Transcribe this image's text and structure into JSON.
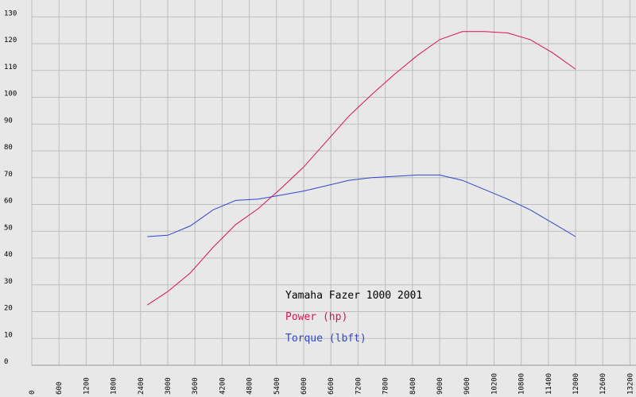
{
  "chart_data": {
    "type": "line",
    "x_ticks": [
      "0",
      "600",
      "1200",
      "1800",
      "2400",
      "3000",
      "3600",
      "4200",
      "4800",
      "5400",
      "6000",
      "6600",
      "7200",
      "7800",
      "8400",
      "9000",
      "9600",
      "10200",
      "10800",
      "11400",
      "12000",
      "12600",
      "13200"
    ],
    "y_ticks": [
      "0",
      "10",
      "20",
      "30",
      "40",
      "50",
      "60",
      "70",
      "80",
      "90",
      "100",
      "110",
      "120",
      "130"
    ],
    "xlim": [
      0,
      13200
    ],
    "ylim": [
      0,
      135
    ],
    "grid": true,
    "legend_title": "Yamaha Fazer 1000 2001",
    "series": [
      {
        "name": "Power (hp)",
        "color": "#dd1155",
        "points": [
          [
            2550,
            22.5
          ],
          [
            3000,
            27.5
          ],
          [
            3500,
            34.5
          ],
          [
            4000,
            44
          ],
          [
            4500,
            52.5
          ],
          [
            5000,
            58.5
          ],
          [
            5500,
            66
          ],
          [
            6000,
            74
          ],
          [
            6500,
            83.5
          ],
          [
            7000,
            93
          ],
          [
            7500,
            101
          ],
          [
            8000,
            108.5
          ],
          [
            8500,
            115.5
          ],
          [
            9000,
            121.5
          ],
          [
            9500,
            124.5
          ],
          [
            10000,
            124.5
          ],
          [
            10500,
            124
          ],
          [
            11000,
            121.5
          ],
          [
            11500,
            116.5
          ],
          [
            12000,
            110.5
          ]
        ]
      },
      {
        "name": "Torque (lbft)",
        "color": "#3344cc",
        "points": [
          [
            2550,
            48
          ],
          [
            3000,
            48.5
          ],
          [
            3500,
            52
          ],
          [
            4000,
            58
          ],
          [
            4500,
            61.5
          ],
          [
            5000,
            62
          ],
          [
            5500,
            63.5
          ],
          [
            6000,
            65
          ],
          [
            6500,
            67
          ],
          [
            7000,
            69
          ],
          [
            7500,
            70
          ],
          [
            8000,
            70.5
          ],
          [
            8500,
            71
          ],
          [
            9000,
            71
          ],
          [
            9500,
            69
          ],
          [
            10000,
            65.5
          ],
          [
            10500,
            62
          ],
          [
            11000,
            58
          ],
          [
            11500,
            53
          ],
          [
            12000,
            48
          ]
        ]
      }
    ]
  }
}
